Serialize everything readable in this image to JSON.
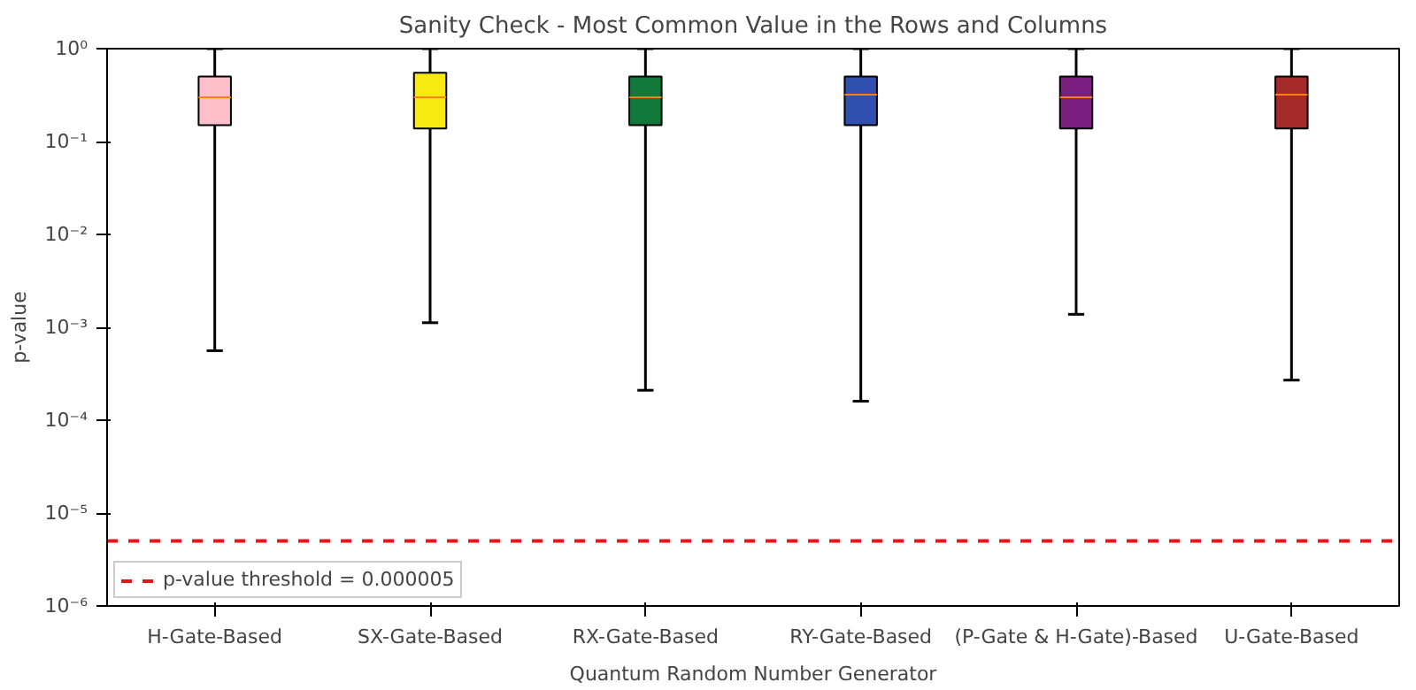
{
  "chart_data": {
    "type": "box",
    "title": "Sanity Check - Most Common Value in the Rows and Columns",
    "xlabel": "Quantum Random Number Generator",
    "ylabel": "p-value",
    "categories": [
      "H-Gate-Based",
      "SX-Gate-Based",
      "RX-Gate-Based",
      "RY-Gate-Based",
      "(P-Gate & H-Gate)-Based",
      "U-Gate-Based"
    ],
    "colors": [
      "#ffc0cb",
      "#f8ea10",
      "#117a3a",
      "#3050b0",
      "#7a1f80",
      "#a52a2a"
    ],
    "boxes": [
      {
        "low": 0.00056,
        "q1": 0.15,
        "median": 0.3,
        "q3": 0.5,
        "high": 1
      },
      {
        "low": 0.00112,
        "q1": 0.138,
        "median": 0.3,
        "q3": 0.55,
        "high": 1
      },
      {
        "low": 0.00021,
        "q1": 0.15,
        "median": 0.3,
        "q3": 0.5,
        "high": 1
      },
      {
        "low": 0.00016,
        "q1": 0.15,
        "median": 0.32,
        "q3": 0.5,
        "high": 1
      },
      {
        "low": 0.00138,
        "q1": 0.138,
        "median": 0.3,
        "q3": 0.5,
        "high": 1
      },
      {
        "low": 0.00027,
        "q1": 0.138,
        "median": 0.32,
        "q3": 0.5,
        "high": 1
      }
    ],
    "log": "y",
    "ylim": [
      1e-06,
      1
    ],
    "yticks": [
      {
        "value": 1e-06,
        "label": "10⁻⁶"
      },
      {
        "value": 1e-05,
        "label": "10⁻⁵"
      },
      {
        "value": 0.0001,
        "label": "10⁻⁴"
      },
      {
        "value": 0.001,
        "label": "10⁻³"
      },
      {
        "value": 0.01,
        "label": "10⁻²"
      },
      {
        "value": 0.1,
        "label": "10⁻¹"
      },
      {
        "value": 1,
        "label": "10⁰"
      }
    ],
    "ref_lines": [
      {
        "axis": "y",
        "value": 5e-06,
        "label": "p-value threshold = 0.000005",
        "color": "#e8141c",
        "line_style": "dashed"
      }
    ],
    "grid": false,
    "legend": "bottom left"
  }
}
